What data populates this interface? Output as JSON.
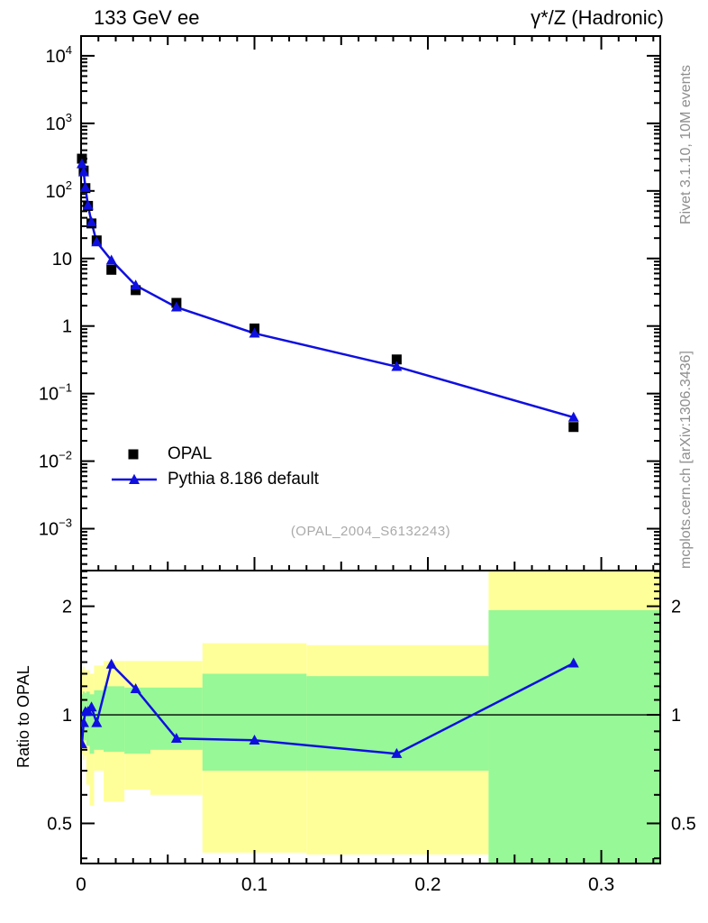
{
  "header": {
    "title_left": "133 GeV ee",
    "title_right": "γ*/Z (Hadronic)"
  },
  "side_annotations": {
    "top": "Rivet 3.1.10,  10M events",
    "bottom": "mcplots.cern.ch [arXiv:1306.3436]"
  },
  "watermark": "(OPAL_2004_S6132243)",
  "legend": {
    "items": [
      {
        "label": "OPAL",
        "marker": "square",
        "color": "#000000"
      },
      {
        "label": "Pythia 8.186 default",
        "marker": "triangle-line",
        "color": "#0f0fe0"
      }
    ]
  },
  "colors": {
    "mc_blue": "#0f0fe0",
    "outer_band_yellow": "#ffff99",
    "inner_band_green": "#96f896",
    "annotation_gray": "#8e8e8e",
    "watermark_gray": "#aaaaaa"
  },
  "chart_data": {
    "type": "line",
    "title": "133 GeV ee — γ*/Z (Hadronic)",
    "x": {
      "min": 0,
      "max": 0.334,
      "labeled_ticks": [
        {
          "v": 0,
          "label": "0"
        },
        {
          "v": 0.1,
          "label": "0.1"
        },
        {
          "v": 0.2,
          "label": "0.2"
        },
        {
          "v": 0.3,
          "label": "0.3"
        }
      ],
      "medium_tick_step": 0.05,
      "minor_tick_step": 0.01
    },
    "main_panel": {
      "yscale": "log",
      "ylim": [
        0.00024,
        19600
      ],
      "ytick_labels": [
        {
          "v": 10000,
          "base": "10",
          "exp": "4"
        },
        {
          "v": 1000,
          "base": "10",
          "exp": "3"
        },
        {
          "v": 100,
          "base": "10",
          "exp": "2"
        },
        {
          "v": 10,
          "base": "10",
          "exp": ""
        },
        {
          "v": 1,
          "base": "1",
          "exp": ""
        },
        {
          "v": 0.1,
          "base": "10",
          "exp": "−1"
        },
        {
          "v": 0.01,
          "base": "10",
          "exp": "−2"
        },
        {
          "v": 0.001,
          "base": "10",
          "exp": "−3"
        }
      ],
      "series": [
        {
          "name": "OPAL",
          "marker": "square",
          "color": "#000000",
          "line": false,
          "x": [
            0.0005,
            0.0015,
            0.0025,
            0.004,
            0.006,
            0.009,
            0.0175,
            0.0315,
            0.055,
            0.1,
            0.182,
            0.284
          ],
          "y": [
            300,
            200,
            110,
            60,
            33,
            18.5,
            6.8,
            3.4,
            2.2,
            0.92,
            0.32,
            0.032
          ]
        },
        {
          "name": "Pythia 8.186 default",
          "marker": "triangle",
          "color": "#0f0fe0",
          "line": true,
          "x": [
            0.0005,
            0.0015,
            0.0025,
            0.004,
            0.006,
            0.009,
            0.0175,
            0.0315,
            0.055,
            0.1,
            0.182,
            0.284
          ],
          "y": [
            250,
            190,
            112,
            61,
            34.5,
            17.5,
            9.4,
            4.0,
            1.9,
            0.78,
            0.25,
            0.0445
          ]
        }
      ]
    },
    "ratio_panel": {
      "ylabel": "Ratio to OPAL",
      "yscale": "log",
      "ylim": [
        0.387,
        2.512
      ],
      "reference_line": 1,
      "ytick_labels": [
        {
          "v": 0.5,
          "label": "0.5"
        },
        {
          "v": 1,
          "label": "1"
        },
        {
          "v": 2,
          "label": "2"
        }
      ],
      "minor_ticks": [
        0.4,
        0.6,
        0.7,
        0.8,
        0.9,
        1.1,
        1.2,
        1.3,
        1.4,
        1.5,
        1.6,
        1.7,
        1.8,
        1.9,
        2.1,
        2.2,
        2.3,
        2.4,
        2.5
      ],
      "band_colors": {
        "outer": "#ffff99",
        "inner": "#96f896"
      },
      "bands": [
        {
          "x0": 0.0,
          "x1": 0.001,
          "outer": [
            0.78,
            1.33
          ],
          "inner": [
            0.86,
            1.14
          ]
        },
        {
          "x0": 0.001,
          "x1": 0.002,
          "outer": [
            0.75,
            1.36
          ],
          "inner": [
            0.84,
            1.16
          ]
        },
        {
          "x0": 0.002,
          "x1": 0.003,
          "outer": [
            0.77,
            1.33
          ],
          "inner": [
            0.85,
            1.15
          ]
        },
        {
          "x0": 0.003,
          "x1": 0.005,
          "outer": [
            0.64,
            1.33
          ],
          "inner": [
            0.82,
            1.16
          ]
        },
        {
          "x0": 0.005,
          "x1": 0.0075,
          "outer": [
            0.56,
            1.3
          ],
          "inner": [
            0.78,
            1.14
          ]
        },
        {
          "x0": 0.0075,
          "x1": 0.013,
          "outer": [
            0.7,
            1.37
          ],
          "inner": [
            0.8,
            1.17
          ]
        },
        {
          "x0": 0.013,
          "x1": 0.025,
          "outer": [
            0.575,
            1.41
          ],
          "inner": [
            0.79,
            1.2
          ]
        },
        {
          "x0": 0.025,
          "x1": 0.04,
          "outer": [
            0.62,
            1.41
          ],
          "inner": [
            0.78,
            1.19
          ]
        },
        {
          "x0": 0.04,
          "x1": 0.07,
          "outer": [
            0.6,
            1.41
          ],
          "inner": [
            0.8,
            1.19
          ]
        },
        {
          "x0": 0.07,
          "x1": 0.13,
          "outer": [
            0.415,
            1.58
          ],
          "inner": [
            0.7,
            1.3
          ]
        },
        {
          "x0": 0.13,
          "x1": 0.235,
          "outer": [
            0.41,
            1.56
          ],
          "inner": [
            0.7,
            1.28
          ]
        },
        {
          "x0": 0.235,
          "x1": 0.334,
          "outer": [
            0.387,
            2.512
          ],
          "inner": [
            0.387,
            1.95
          ]
        }
      ],
      "series": {
        "name": "Pythia 8.186 default / OPAL",
        "color": "#0f0fe0",
        "x": [
          0.0005,
          0.0015,
          0.0025,
          0.004,
          0.006,
          0.009,
          0.0175,
          0.0315,
          0.055,
          0.1,
          0.182,
          0.284
        ],
        "y": [
          0.83,
          0.95,
          1.02,
          1.02,
          1.05,
          0.95,
          1.38,
          1.18,
          0.86,
          0.85,
          0.78,
          1.39
        ]
      }
    }
  }
}
